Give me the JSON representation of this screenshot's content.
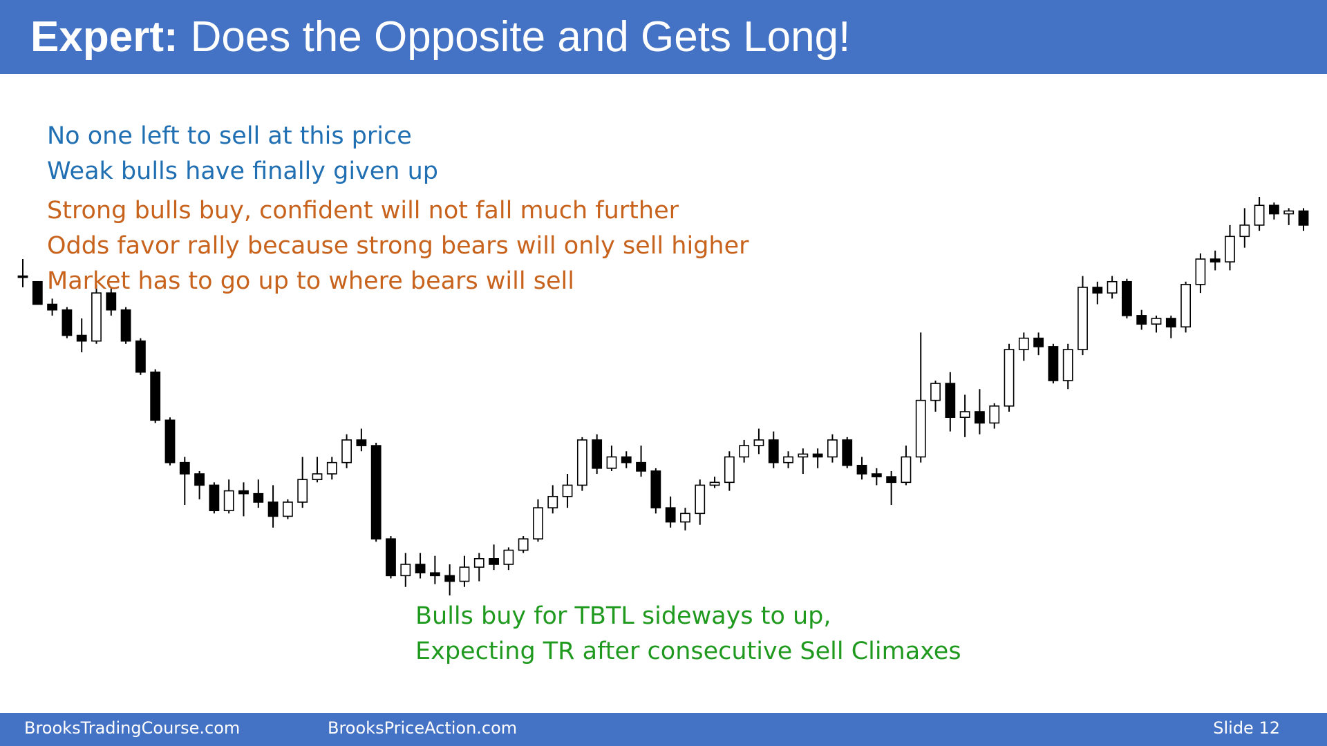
{
  "slide": {
    "title_bold": "Expert:",
    "title_rest": "Does the Opposite and Gets Long!",
    "blue_lines": [
      "No one left to sell at this price",
      "Weak bulls have finally given up"
    ],
    "orange_lines": [
      "Strong bulls buy, confident will not fall much further",
      "Odds favor rally because strong bears will only sell higher",
      "Market has to go up to where bears will sell"
    ],
    "green_lines": [
      "Bulls buy for TBTL sideways to up,",
      "Expecting TR after consecutive Sell Climaxes"
    ],
    "footer_left": "BrooksTradingCourse.com",
    "footer_mid": "BrooksPriceAction.com",
    "footer_right": "Slide  12"
  },
  "colors": {
    "header": "#4472c4",
    "blue_text": "#1f6fb2",
    "orange_text": "#c8631d",
    "green_text": "#1f9a1f",
    "signal_bar_highlight": "#7fd68a",
    "cursor_dot": "#e03030"
  },
  "chart_data": {
    "type": "candlestick",
    "price_scale": "relative (no axis printed)",
    "grid": false,
    "bars": [
      {
        "o": 1.0,
        "h": 4.0,
        "l": -1.0,
        "c": 1.0
      },
      {
        "o": 0.0,
        "h": 0.0,
        "l": -4.0,
        "c": -4.0
      },
      {
        "o": -4.0,
        "h": -3.0,
        "l": -6.0,
        "c": -5.0
      },
      {
        "o": -5.0,
        "h": -4.5,
        "l": -10.0,
        "c": -9.5
      },
      {
        "o": -9.5,
        "h": -6.5,
        "l": -12.5,
        "c": -10.5
      },
      {
        "o": -10.5,
        "h": -0.5,
        "l": -11.0,
        "c": -2.0
      },
      {
        "o": -2.0,
        "h": -1.0,
        "l": -6.0,
        "c": -5.0
      },
      {
        "o": -5.0,
        "h": -4.5,
        "l": -11.0,
        "c": -10.5
      },
      {
        "o": -10.5,
        "h": -10.0,
        "l": -16.5,
        "c": -16.0
      },
      {
        "o": -16.0,
        "h": -15.5,
        "l": -25.0,
        "c": -24.5
      },
      {
        "o": -24.5,
        "h": -24.0,
        "l": -32.5,
        "c": -32.0
      },
      {
        "o": -32.0,
        "h": -31.0,
        "l": -39.5,
        "c": -34.0
      },
      {
        "o": -34.0,
        "h": -33.5,
        "l": -38.5,
        "c": -36.0
      },
      {
        "o": -36.0,
        "h": -35.5,
        "l": -41.0,
        "c": -40.5
      },
      {
        "o": -40.5,
        "h": -35.0,
        "l": -41.0,
        "c": -37.0
      },
      {
        "o": -37.0,
        "h": -35.5,
        "l": -41.5,
        "c": -37.5
      },
      {
        "o": -37.5,
        "h": -35.0,
        "l": -40.0,
        "c": -39.0
      },
      {
        "o": -39.0,
        "h": -36.0,
        "l": -43.5,
        "c": -41.5
      },
      {
        "o": -41.5,
        "h": -38.5,
        "l": -42.0,
        "c": -39.0
      },
      {
        "o": -39.0,
        "h": -31.0,
        "l": -40.0,
        "c": -35.0
      },
      {
        "o": -35.0,
        "h": -31.0,
        "l": -35.5,
        "c": -34.0
      },
      {
        "o": -34.0,
        "h": -31.0,
        "l": -35.0,
        "c": -32.0
      },
      {
        "o": -32.0,
        "h": -27.0,
        "l": -33.0,
        "c": -28.0
      },
      {
        "o": -28.0,
        "h": -26.0,
        "l": -30.0,
        "c": -29.0
      },
      {
        "o": -29.0,
        "h": -28.5,
        "l": -46.0,
        "c": -45.5
      },
      {
        "o": -45.5,
        "h": -45.0,
        "l": -52.5,
        "c": -52.0
      },
      {
        "o": -52.0,
        "h": -48.0,
        "l": -54.0,
        "c": -50.0
      },
      {
        "o": -50.0,
        "h": -48.0,
        "l": -52.5,
        "c": -51.5
      },
      {
        "o": -51.5,
        "h": -48.5,
        "l": -53.5,
        "c": -52.0
      },
      {
        "o": -52.0,
        "h": -50.0,
        "l": -55.5,
        "c": -53.0
      },
      {
        "o": -53.0,
        "h": -48.5,
        "l": -54.0,
        "c": -50.5
      },
      {
        "o": -50.5,
        "h": -48.0,
        "l": -53.0,
        "c": -49.0
      },
      {
        "o": -49.0,
        "h": -46.5,
        "l": -51.0,
        "c": -50.0
      },
      {
        "o": -50.0,
        "h": -47.0,
        "l": -51.0,
        "c": -47.5
      },
      {
        "o": -47.5,
        "h": -45.0,
        "l": -48.0,
        "c": -45.5
      },
      {
        "o": -45.5,
        "h": -38.5,
        "l": -46.0,
        "c": -40.0
      },
      {
        "o": -40.0,
        "h": -36.0,
        "l": -41.0,
        "c": -38.0
      },
      {
        "o": -38.0,
        "h": -34.0,
        "l": -40.0,
        "c": -36.0
      },
      {
        "o": -36.0,
        "h": -27.5,
        "l": -37.0,
        "c": -28.0
      },
      {
        "o": -28.0,
        "h": -27.0,
        "l": -34.0,
        "c": -33.0
      },
      {
        "o": -33.0,
        "h": -29.0,
        "l": -33.5,
        "c": -31.0
      },
      {
        "o": -31.0,
        "h": -30.0,
        "l": -33.0,
        "c": -32.0
      },
      {
        "o": -32.0,
        "h": -29.0,
        "l": -34.5,
        "c": -33.5
      },
      {
        "o": -33.5,
        "h": -33.0,
        "l": -41.0,
        "c": -40.0
      },
      {
        "o": -40.0,
        "h": -38.0,
        "l": -43.5,
        "c": -42.5
      },
      {
        "o": -42.5,
        "h": -40.0,
        "l": -44.0,
        "c": -41.0
      },
      {
        "o": -41.0,
        "h": -35.0,
        "l": -43.0,
        "c": -36.0
      },
      {
        "o": -36.0,
        "h": -34.5,
        "l": -36.5,
        "c": -35.5
      },
      {
        "o": -35.5,
        "h": -30.0,
        "l": -37.0,
        "c": -31.0
      },
      {
        "o": -31.0,
        "h": -28.0,
        "l": -32.0,
        "c": -29.0
      },
      {
        "o": -29.0,
        "h": -26.0,
        "l": -30.5,
        "c": -28.0
      },
      {
        "o": -28.0,
        "h": -26.5,
        "l": -33.0,
        "c": -32.0
      },
      {
        "o": -32.0,
        "h": -30.0,
        "l": -33.0,
        "c": -31.0
      },
      {
        "o": -31.0,
        "h": -29.5,
        "l": -34.0,
        "c": -30.5
      },
      {
        "o": -30.5,
        "h": -29.5,
        "l": -33.0,
        "c": -31.0
      },
      {
        "o": -31.0,
        "h": -27.0,
        "l": -32.0,
        "c": -28.0
      },
      {
        "o": -28.0,
        "h": -27.5,
        "l": -33.0,
        "c": -32.5
      },
      {
        "o": -32.5,
        "h": -31.0,
        "l": -35.0,
        "c": -34.0
      },
      {
        "o": -34.0,
        "h": -33.0,
        "l": -36.0,
        "c": -34.5
      },
      {
        "o": -34.5,
        "h": -33.5,
        "l": -39.5,
        "c": -35.5
      },
      {
        "o": -35.5,
        "h": -29.0,
        "l": -36.0,
        "c": -31.0
      },
      {
        "o": -31.0,
        "h": -9.0,
        "l": -32.0,
        "c": -21.0
      },
      {
        "o": -21.0,
        "h": -17.5,
        "l": -23.0,
        "c": -18.0
      },
      {
        "o": -18.0,
        "h": -16.0,
        "l": -26.5,
        "c": -24.0
      },
      {
        "o": -24.0,
        "h": -20.0,
        "l": -27.5,
        "c": -23.0
      },
      {
        "o": -23.0,
        "h": -19.0,
        "l": -27.0,
        "c": -25.0
      },
      {
        "o": -25.0,
        "h": -21.5,
        "l": -26.0,
        "c": -22.0
      },
      {
        "o": -22.0,
        "h": -11.0,
        "l": -23.0,
        "c": -12.0
      },
      {
        "o": -12.0,
        "h": -9.0,
        "l": -14.0,
        "c": -10.0
      },
      {
        "o": -10.0,
        "h": -9.0,
        "l": -13.0,
        "c": -11.5
      },
      {
        "o": -11.5,
        "h": -11.0,
        "l": -18.0,
        "c": -17.5
      },
      {
        "o": -17.5,
        "h": -11.0,
        "l": -19.0,
        "c": -12.0
      },
      {
        "o": -12.0,
        "h": 1.0,
        "l": -13.0,
        "c": -1.0
      },
      {
        "o": -1.0,
        "h": 0.0,
        "l": -4.0,
        "c": -2.0
      },
      {
        "o": -2.0,
        "h": 1.0,
        "l": -3.0,
        "c": 0.0
      },
      {
        "o": 0.0,
        "h": 0.5,
        "l": -6.5,
        "c": -6.0
      },
      {
        "o": -6.0,
        "h": -5.0,
        "l": -8.5,
        "c": -7.5
      },
      {
        "o": -7.5,
        "h": -6.0,
        "l": -9.0,
        "c": -6.5
      },
      {
        "o": -6.5,
        "h": -6.0,
        "l": -10.0,
        "c": -8.0
      },
      {
        "o": -8.0,
        "h": 0.0,
        "l": -9.0,
        "c": -0.5
      },
      {
        "o": -0.5,
        "h": 5.0,
        "l": -2.0,
        "c": 4.0
      },
      {
        "o": 4.0,
        "h": 5.5,
        "l": 2.0,
        "c": 3.5
      },
      {
        "o": 3.5,
        "h": 10.0,
        "l": 2.0,
        "c": 8.0
      },
      {
        "o": 8.0,
        "h": 13.0,
        "l": 6.0,
        "c": 10.0
      },
      {
        "o": 10.0,
        "h": 15.0,
        "l": 9.0,
        "c": 13.5
      },
      {
        "o": 13.5,
        "h": 14.0,
        "l": 11.0,
        "c": 12.0
      },
      {
        "o": 12.0,
        "h": 13.0,
        "l": 10.0,
        "c": 12.5
      },
      {
        "o": 12.5,
        "h": 13.0,
        "l": 9.0,
        "c": 10.0
      }
    ]
  }
}
